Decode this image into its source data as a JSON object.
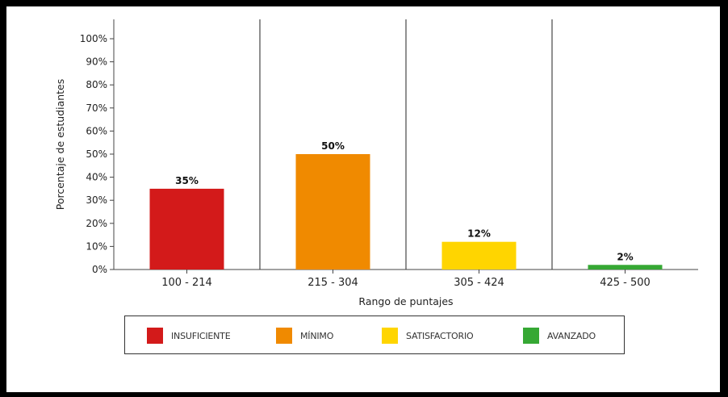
{
  "chart_data": {
    "type": "bar",
    "categories": [
      "100 - 214",
      "215 - 304",
      "305 - 424",
      "425 - 500"
    ],
    "values": [
      35,
      50,
      12,
      2
    ],
    "data_labels": [
      "35%",
      "50%",
      "12%",
      "2%"
    ],
    "colors": [
      "#d31a1a",
      "#f08a00",
      "#ffd500",
      "#36a834"
    ],
    "xlabel": "Rango de puntajes",
    "ylabel": "Porcentaje de estudiantes",
    "ylim": [
      0,
      100
    ],
    "yticks": [
      "0%",
      "10%",
      "20%",
      "30%",
      "40%",
      "50%",
      "60%",
      "70%",
      "80%",
      "90%",
      "100%"
    ],
    "grid": false,
    "legend_position": "bottom",
    "legend": [
      {
        "label": "INSUFICIENTE",
        "color": "#d31a1a"
      },
      {
        "label": "MÍNIMO",
        "color": "#f08a00"
      },
      {
        "label": "SATISFACTORIO",
        "color": "#ffd500"
      },
      {
        "label": "AVANZADO",
        "color": "#36a834"
      }
    ]
  }
}
